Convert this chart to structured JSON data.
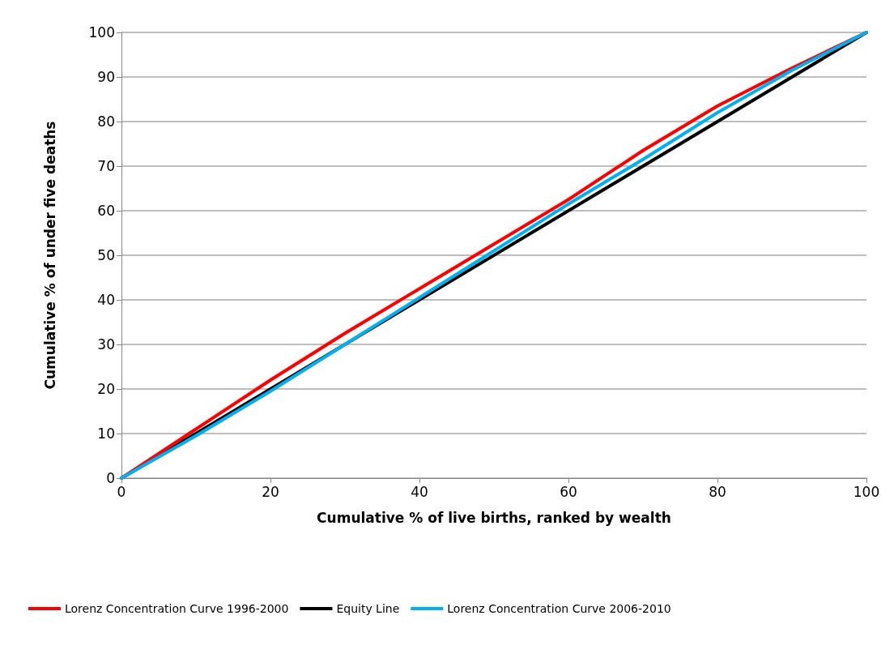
{
  "chart_data": {
    "type": "line",
    "xlabel": "Cumulative % of live births, ranked by wealth",
    "ylabel": "Cumulative % of under five deaths",
    "xlim": [
      0,
      100
    ],
    "xticks": [
      0,
      20,
      40,
      60,
      80,
      100
    ],
    "ylim": [
      0,
      100
    ],
    "yticks": [
      0,
      10,
      20,
      30,
      40,
      50,
      60,
      70,
      80,
      90,
      100
    ],
    "grid": "y",
    "legend": "bottom",
    "marker": "none",
    "line_style": "solid",
    "series": [
      {
        "name": "Lorenz Concentration Curve 1996-2000",
        "color": "#ff0000",
        "x": [
          0,
          10,
          20,
          30,
          40,
          50,
          60,
          70,
          76,
          80,
          90,
          100
        ],
        "values": [
          0,
          11,
          22,
          32.5,
          42.5,
          52.5,
          62.5,
          73.5,
          79.5,
          83.5,
          92,
          100
        ]
      },
      {
        "name": "Equity Line",
        "color": "#000000",
        "x": [
          0,
          100
        ],
        "values": [
          0,
          100
        ]
      },
      {
        "name": "Lorenz Concentration Curve 2006-2010",
        "color": "#00b0f0",
        "x": [
          0,
          10,
          20,
          30,
          40,
          50,
          60,
          70,
          80,
          90,
          100
        ],
        "values": [
          0,
          9.5,
          19.5,
          30,
          40.5,
          51,
          61.5,
          71.5,
          82,
          91.5,
          100
        ]
      }
    ]
  }
}
